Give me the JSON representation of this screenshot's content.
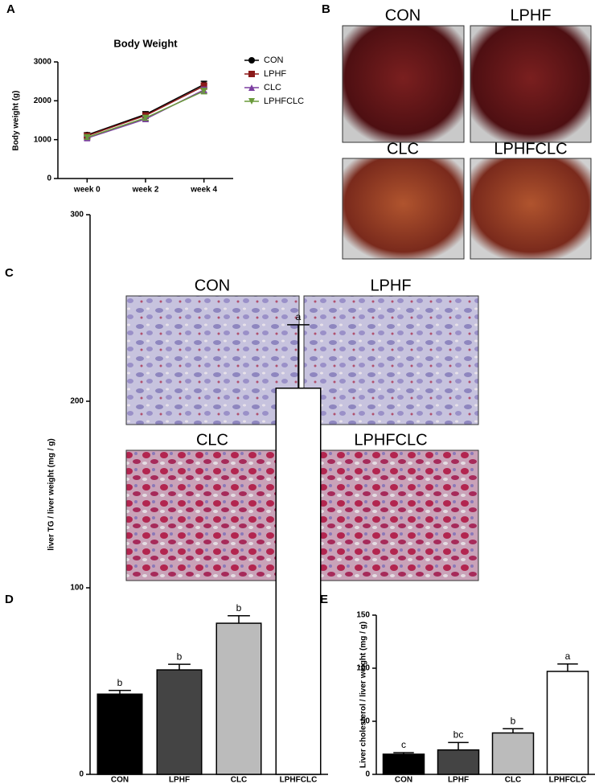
{
  "panel_labels": [
    "A",
    "B",
    "C",
    "D",
    "E"
  ],
  "liver_photos": {
    "labels": [
      "CON",
      "LPHF",
      "CLC",
      "LPHFCLC"
    ]
  },
  "histology": {
    "labels": [
      "CON",
      "LPHF",
      "CLC",
      "LPHFCLC"
    ]
  },
  "chart_data": [
    {
      "type": "line",
      "title": "Body Weight",
      "y_label": "Body weight (g)",
      "categories": [
        "week 0",
        "week 2",
        "week 4"
      ],
      "ylim": [
        0,
        3000
      ],
      "yticks": [
        0,
        1000,
        2000,
        3000
      ],
      "series": [
        {
          "name": "CON",
          "color": "#000000",
          "marker": "circle",
          "values": [
            1120,
            1650,
            2420
          ],
          "errors": [
            60,
            70,
            80
          ]
        },
        {
          "name": "LPHF",
          "color": "#8b1a1a",
          "marker": "square",
          "values": [
            1100,
            1620,
            2380
          ],
          "errors": [
            60,
            70,
            80
          ]
        },
        {
          "name": "CLC",
          "color": "#7b3fa0",
          "marker": "triangle-up",
          "values": [
            1040,
            1530,
            2280
          ],
          "errors": [
            50,
            60,
            70
          ]
        },
        {
          "name": "LPHFCLC",
          "color": "#6a9a3a",
          "marker": "triangle-down",
          "values": [
            1060,
            1560,
            2250
          ],
          "errors": [
            50,
            60,
            70
          ]
        }
      ]
    },
    {
      "type": "bar",
      "y_label": "liver TG / liver weight (mg / g)",
      "categories": [
        "CON",
        "LPHF",
        "CLC",
        "LPHFCLC"
      ],
      "values": [
        43,
        56,
        81,
        207
      ],
      "errors": [
        2,
        3,
        4,
        34
      ],
      "annotations": [
        "b",
        "b",
        "b",
        "a"
      ],
      "colors": [
        "#000000",
        "#444444",
        "#bbbbbb",
        "#ffffff"
      ],
      "ylim": [
        0,
        300
      ],
      "yticks": [
        0,
        100,
        200,
        300
      ]
    },
    {
      "type": "bar",
      "y_label": "Liver cholesterol / liver weight (mg / g)",
      "categories": [
        "CON",
        "LPHF",
        "CLC",
        "LPHFCLC"
      ],
      "values": [
        19,
        23,
        39,
        97
      ],
      "errors": [
        1.5,
        7,
        4,
        7
      ],
      "annotations": [
        "c",
        "bc",
        "b",
        "a"
      ],
      "colors": [
        "#000000",
        "#444444",
        "#bbbbbb",
        "#ffffff"
      ],
      "ylim": [
        0,
        150
      ],
      "yticks": [
        0,
        50,
        100,
        150
      ]
    }
  ]
}
